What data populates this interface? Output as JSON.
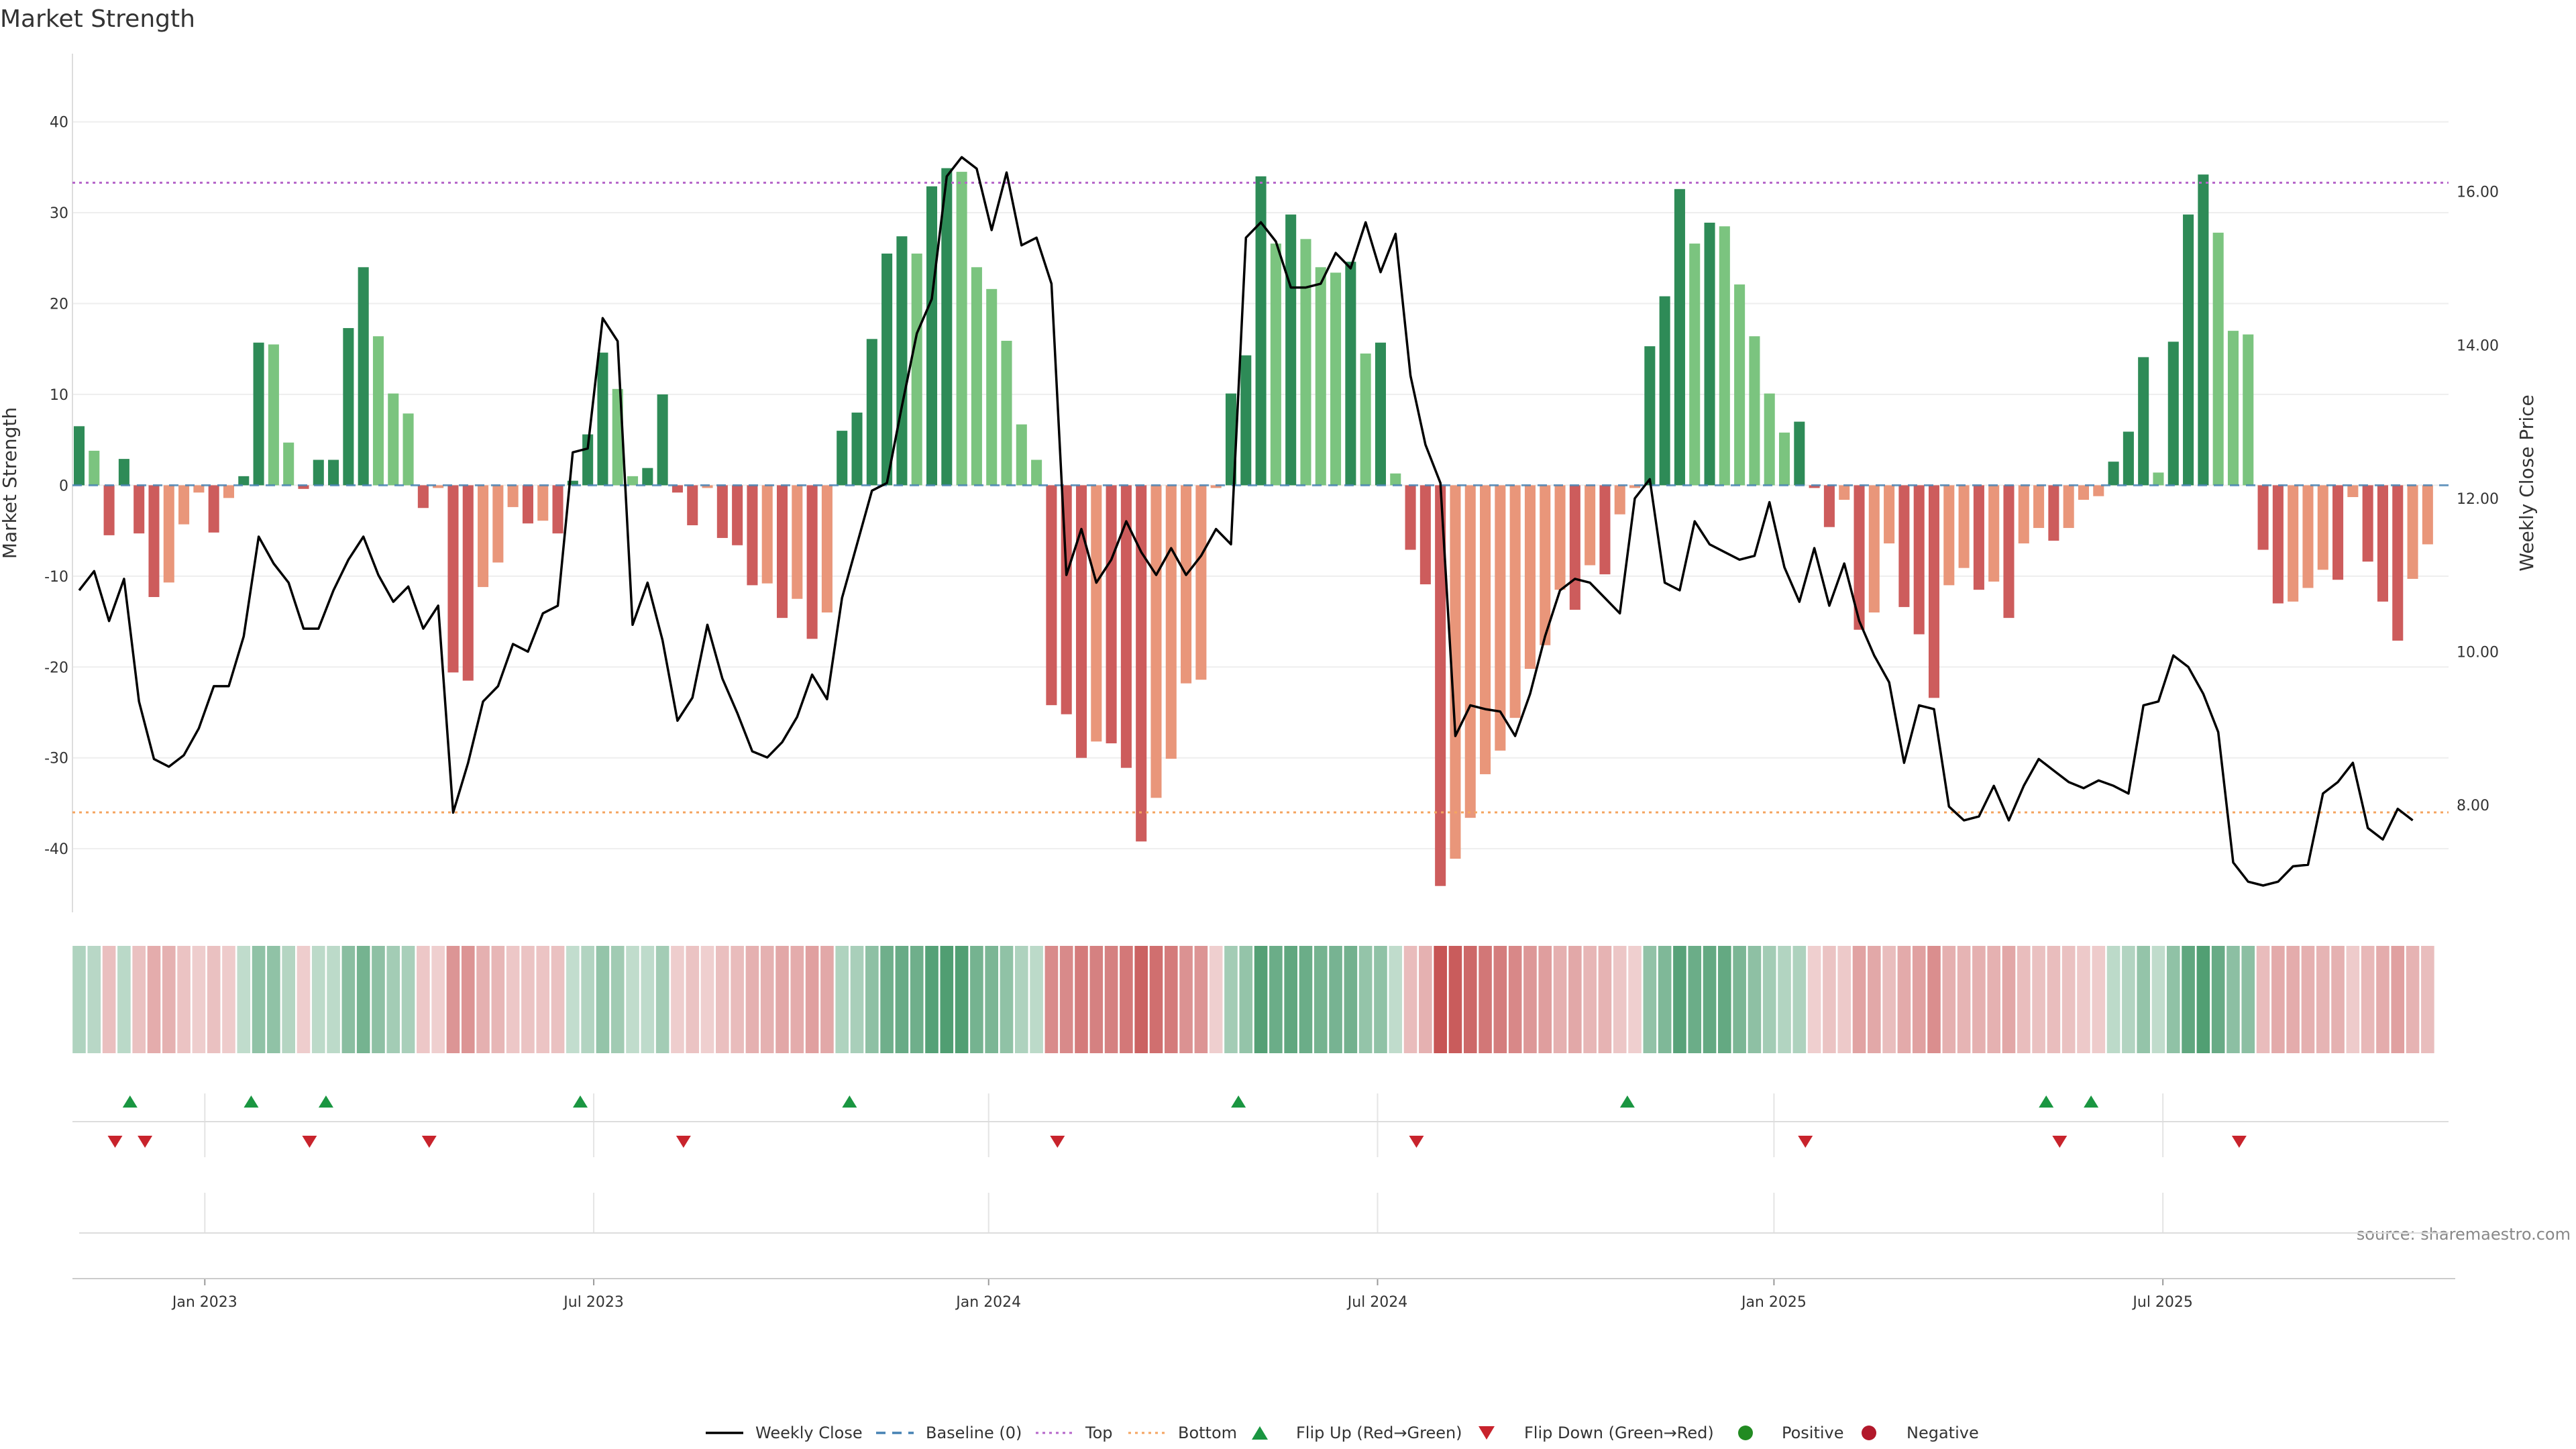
{
  "colors": {
    "strong_green": "#2e8b57",
    "light_green": "#7bc47f",
    "strong_red": "#cd5c5c",
    "light_red": "#e9967a",
    "top_line": "#b565c9",
    "bottom_line": "#f4a460",
    "baseline": "#4682b4",
    "close_line": "#000000",
    "flip_up": "#1a9641",
    "flip_down": "#c8232c",
    "positive": "#228b22",
    "negative": "#b2182b",
    "grid": "#eeeeee"
  },
  "chart_data": {
    "type": "bar",
    "title": "Market Strength",
    "ylabel": "Market Strength",
    "y2label": "Weekly Close Price",
    "ylim": [
      -47,
      47.5
    ],
    "y2lim": [
      6.6,
      17.8
    ],
    "yticks": [
      -40,
      -30,
      -20,
      -10,
      0,
      10,
      20,
      30,
      40
    ],
    "y2ticks": [
      8.0,
      10.0,
      12.0,
      14.0,
      16.0
    ],
    "y2tick_labels": [
      "8.00",
      "10.00",
      "12.00",
      "14.00",
      "16.00"
    ],
    "top_threshold": 33.3,
    "bottom_threshold": -36,
    "x_tick_labels": [
      "Jan 2023",
      "Jul 2023",
      "Jan 2024",
      "Jul 2024",
      "Jan 2025",
      "Jul 2025"
    ],
    "x_tick_week_index": [
      8.4,
      34.4,
      60.8,
      86.8,
      113.3,
      139.3
    ],
    "strength": [
      6.5,
      3.8,
      -5.5,
      2.9,
      -5.3,
      -12.3,
      -10.7,
      -4.3,
      -0.8,
      -5.2,
      -1.4,
      1.0,
      15.7,
      15.5,
      4.7,
      -0.4,
      2.8,
      2.8,
      17.3,
      24.0,
      16.4,
      10.1,
      7.9,
      -2.5,
      -0.3,
      -20.6,
      -21.5,
      -11.2,
      -8.5,
      -2.4,
      -4.2,
      -3.9,
      -5.3,
      0.5,
      5.6,
      14.6,
      10.6,
      1.0,
      1.9,
      10.0,
      -0.8,
      -4.4,
      -0.3,
      -5.8,
      -6.6,
      -11.0,
      -10.8,
      -14.6,
      -12.5,
      -16.9,
      -14.0,
      6.0,
      8.0,
      16.1,
      25.5,
      27.4,
      25.5,
      32.9,
      34.9,
      34.5,
      24.0,
      21.6,
      15.9,
      6.7,
      2.8,
      -24.2,
      -25.2,
      -30.0,
      -28.2,
      -28.4,
      -31.1,
      -39.2,
      -34.4,
      -30.1,
      -21.8,
      -21.4,
      -0.3,
      10.1,
      14.3,
      34.0,
      26.6,
      29.8,
      27.1,
      24.0,
      23.4,
      24.6,
      14.5,
      15.7,
      1.3,
      -7.1,
      -10.9,
      -44.1,
      -41.1,
      -36.6,
      -31.8,
      -29.2,
      -25.6,
      -20.2,
      -17.6,
      -11.5,
      -13.7,
      -8.8,
      -9.8,
      -3.2,
      -0.3,
      15.3,
      20.8,
      32.6,
      26.6,
      28.9,
      28.5,
      22.1,
      16.4,
      10.1,
      5.8,
      7.0,
      -0.3,
      -4.6,
      -1.6,
      -15.9,
      -14.0,
      -6.4,
      -13.4,
      -16.4,
      -23.4,
      -11.0,
      -9.1,
      -11.5,
      -10.6,
      -14.6,
      -6.4,
      -4.7,
      -6.1,
      -4.7,
      -1.6,
      -1.2,
      2.6,
      5.9,
      14.1,
      1.4,
      15.8,
      29.8,
      34.2,
      27.8,
      17.0,
      16.6,
      -7.1,
      -13.0,
      -12.8,
      -11.3,
      -9.3,
      -10.4,
      -1.3,
      -8.4,
      -12.8,
      -17.1,
      -10.3,
      -6.5
    ],
    "weekly_close": [
      10.8,
      11.05,
      10.4,
      10.95,
      9.35,
      8.6,
      8.5,
      8.65,
      9.0,
      9.55,
      9.55,
      10.2,
      11.5,
      11.15,
      10.9,
      10.3,
      10.3,
      10.8,
      11.2,
      11.5,
      11.0,
      10.65,
      10.85,
      10.3,
      10.6,
      7.9,
      8.55,
      9.35,
      9.55,
      10.1,
      10.0,
      10.5,
      10.6,
      12.6,
      12.65,
      14.35,
      14.05,
      10.35,
      10.9,
      10.15,
      9.1,
      9.4,
      10.35,
      9.65,
      9.2,
      8.7,
      8.62,
      8.82,
      9.15,
      9.7,
      9.38,
      10.7,
      11.4,
      12.1,
      12.2,
      13.2,
      14.15,
      14.6,
      16.2,
      16.45,
      16.3,
      15.5,
      16.25,
      15.3,
      15.4,
      14.8,
      11.0,
      11.6,
      10.9,
      11.2,
      11.7,
      11.3,
      11.0,
      11.35,
      11.0,
      11.25,
      11.6,
      11.4,
      15.4,
      15.6,
      15.35,
      14.75,
      14.75,
      14.8,
      15.2,
      15.0,
      15.6,
      14.95,
      15.45,
      13.6,
      12.7,
      12.2,
      8.9,
      9.3,
      9.25,
      9.22,
      8.9,
      9.45,
      10.2,
      10.8,
      10.95,
      10.9,
      10.7,
      10.5,
      12.0,
      12.25,
      10.9,
      10.8,
      11.7,
      11.4,
      11.3,
      11.2,
      11.25,
      11.95,
      11.1,
      10.65,
      11.35,
      10.6,
      11.15,
      10.4,
      9.95,
      9.6,
      8.55,
      9.3,
      9.25,
      7.98,
      7.8,
      7.85,
      8.25,
      7.8,
      8.25,
      8.6,
      8.45,
      8.3,
      8.22,
      8.32,
      8.25,
      8.15,
      9.3,
      9.35,
      9.95,
      9.8,
      9.45,
      8.95,
      7.25,
      7.0,
      6.95,
      7.0,
      7.2,
      7.22,
      8.15,
      8.3,
      8.55,
      7.7,
      7.55,
      7.95,
      7.8
    ],
    "flip_up_weeks": [
      3.4,
      11.5,
      16.5,
      33.5,
      51.5,
      77.5,
      103.5,
      131.5,
      134.5
    ],
    "flip_down_weeks": [
      2.4,
      4.4,
      15.4,
      23.4,
      40.4,
      65.4,
      89.4,
      115.4,
      132.4,
      144.4
    ],
    "legend": [
      "Weekly Close",
      "Baseline (0)",
      "Top",
      "Bottom",
      "Flip Up (Red→Green)",
      "Flip Down (Green→Red)",
      "Positive",
      "Negative"
    ],
    "source": "source: sharemaestro.com"
  }
}
